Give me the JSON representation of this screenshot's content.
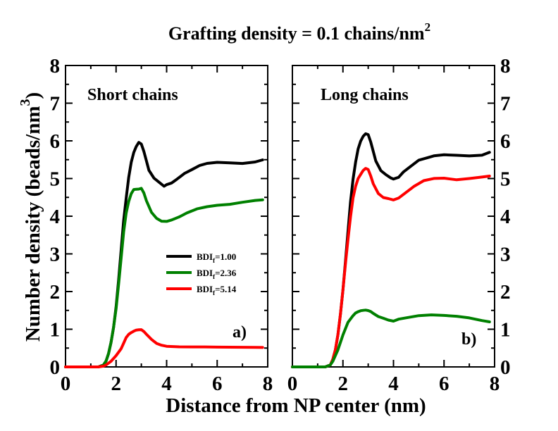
{
  "chart_data": {
    "type": "line",
    "title": "Grafting density = 0.1 chains/nm",
    "title_superscript": "2",
    "xlabel": "Distance from NP center (nm)",
    "ylabel": "Number density (beads/nm",
    "ylabel_superscript": "3",
    "ylabel_close": ")",
    "xlim": [
      0,
      8
    ],
    "ylim": [
      0,
      8
    ],
    "xticks": [
      "0",
      "2",
      "4",
      "6",
      "8"
    ],
    "yticks": [
      "0",
      "1",
      "2",
      "3",
      "4",
      "5",
      "6",
      "7",
      "8"
    ],
    "legend": {
      "position": "middle-right of panel a",
      "entries": [
        {
          "prefix": "BDI",
          "subscript": "f",
          "suffix": "=1.00",
          "color": "#000000"
        },
        {
          "prefix": "BDI",
          "subscript": "f",
          "suffix": "=2.36",
          "color": "#008000"
        },
        {
          "prefix": "BDI",
          "subscript": "f",
          "suffix": "=5.14",
          "color": "#ff0000"
        }
      ]
    },
    "panels": [
      {
        "id": "a",
        "label": "Short chains",
        "tag": "a)",
        "series": [
          {
            "name": "BDIf=1.00",
            "color": "#000000",
            "x": [
              0,
              1.3,
              1.5,
              1.6,
              1.7,
              1.8,
              1.9,
              2.0,
              2.1,
              2.2,
              2.3,
              2.4,
              2.5,
              2.6,
              2.7,
              2.8,
              2.9,
              3.0,
              3.1,
              3.2,
              3.3,
              3.5,
              3.7,
              3.9,
              4.0,
              4.2,
              4.4,
              4.7,
              5.0,
              5.3,
              5.6,
              6.0,
              6.5,
              7.0,
              7.5,
              7.8
            ],
            "y": [
              0,
              0,
              0.05,
              0.15,
              0.35,
              0.65,
              1.05,
              1.6,
              2.3,
              3.1,
              3.9,
              4.5,
              5.05,
              5.45,
              5.7,
              5.85,
              5.95,
              5.9,
              5.7,
              5.45,
              5.2,
              5.0,
              4.9,
              4.8,
              4.85,
              4.9,
              5.0,
              5.15,
              5.25,
              5.35,
              5.4,
              5.42,
              5.4,
              5.38,
              5.42,
              5.48
            ]
          },
          {
            "name": "BDIf=2.36",
            "color": "#008000",
            "x": [
              0,
              1.3,
              1.5,
              1.6,
              1.7,
              1.8,
              1.9,
              2.0,
              2.1,
              2.2,
              2.3,
              2.4,
              2.5,
              2.6,
              2.7,
              2.8,
              2.9,
              3.0,
              3.1,
              3.2,
              3.4,
              3.6,
              3.8,
              4.0,
              4.2,
              4.5,
              4.8,
              5.2,
              5.6,
              6.0,
              6.5,
              7.0,
              7.5,
              7.8
            ],
            "y": [
              0,
              0,
              0.05,
              0.15,
              0.35,
              0.65,
              1.05,
              1.55,
              2.2,
              2.9,
              3.6,
              4.1,
              4.4,
              4.6,
              4.7,
              4.7,
              4.7,
              4.72,
              4.6,
              4.4,
              4.1,
              3.95,
              3.88,
              3.88,
              3.92,
              4.0,
              4.1,
              4.2,
              4.25,
              4.28,
              4.3,
              4.35,
              4.4,
              4.42
            ]
          },
          {
            "name": "BDIf=5.14",
            "color": "#ff0000",
            "x": [
              0,
              1.3,
              1.5,
              1.6,
              1.8,
              2.0,
              2.2,
              2.3,
              2.4,
              2.5,
              2.6,
              2.7,
              2.8,
              2.9,
              3.0,
              3.1,
              3.2,
              3.4,
              3.6,
              3.8,
              4.0,
              4.5,
              5.0,
              5.5,
              6.0,
              6.5,
              7.0,
              7.5,
              7.8
            ],
            "y": [
              0,
              0,
              0.02,
              0.05,
              0.15,
              0.3,
              0.5,
              0.65,
              0.8,
              0.88,
              0.92,
              0.95,
              0.97,
              0.97,
              0.97,
              0.92,
              0.85,
              0.72,
              0.62,
              0.58,
              0.56,
              0.55,
              0.55,
              0.55,
              0.54,
              0.53,
              0.52,
              0.51,
              0.5
            ]
          }
        ]
      },
      {
        "id": "b",
        "label": "Long chains",
        "tag": "b)",
        "series": [
          {
            "name": "BDIf=1.00",
            "color": "#000000",
            "x": [
              0,
              1.3,
              1.5,
              1.6,
              1.7,
              1.8,
              1.9,
              2.0,
              2.1,
              2.2,
              2.3,
              2.4,
              2.5,
              2.6,
              2.7,
              2.8,
              2.9,
              3.0,
              3.1,
              3.2,
              3.3,
              3.5,
              3.7,
              3.9,
              4.0,
              4.2,
              4.4,
              4.7,
              5.0,
              5.3,
              5.6,
              6.0,
              6.5,
              7.0,
              7.5,
              7.8
            ],
            "y": [
              0,
              0,
              0.05,
              0.2,
              0.45,
              0.85,
              1.4,
              2.05,
              2.8,
              3.6,
              4.4,
              5.0,
              5.45,
              5.8,
              6.0,
              6.12,
              6.18,
              6.15,
              5.95,
              5.7,
              5.45,
              5.2,
              5.1,
              5.02,
              5.0,
              5.05,
              5.2,
              5.35,
              5.5,
              5.55,
              5.6,
              5.62,
              5.6,
              5.58,
              5.6,
              5.68
            ]
          },
          {
            "name": "BDIf=5.14",
            "color": "#ff0000",
            "x": [
              0,
              1.3,
              1.5,
              1.6,
              1.7,
              1.8,
              1.9,
              2.0,
              2.1,
              2.2,
              2.3,
              2.4,
              2.5,
              2.6,
              2.7,
              2.8,
              2.9,
              3.0,
              3.1,
              3.2,
              3.4,
              3.6,
              3.8,
              4.0,
              4.2,
              4.5,
              4.8,
              5.2,
              5.6,
              6.0,
              6.5,
              7.0,
              7.5,
              7.8
            ],
            "y": [
              0,
              0,
              0.05,
              0.2,
              0.45,
              0.85,
              1.4,
              2.05,
              2.75,
              3.4,
              4.0,
              4.5,
              4.8,
              5.0,
              5.1,
              5.2,
              5.25,
              5.22,
              5.05,
              4.85,
              4.6,
              4.5,
              4.48,
              4.45,
              4.5,
              4.65,
              4.8,
              4.95,
              5.0,
              5.0,
              4.95,
              4.98,
              5.02,
              5.05
            ]
          },
          {
            "name": "BDIf=2.36",
            "color": "#008000",
            "x": [
              0,
              1.3,
              1.5,
              1.6,
              1.8,
              2.0,
              2.2,
              2.4,
              2.5,
              2.6,
              2.7,
              2.8,
              2.9,
              3.0,
              3.1,
              3.2,
              3.4,
              3.6,
              3.8,
              4.0,
              4.2,
              4.5,
              5.0,
              5.5,
              6.0,
              6.5,
              7.0,
              7.5,
              7.8
            ],
            "y": [
              0,
              0,
              0.05,
              0.15,
              0.45,
              0.85,
              1.2,
              1.38,
              1.45,
              1.48,
              1.5,
              1.5,
              1.5,
              1.48,
              1.45,
              1.4,
              1.32,
              1.28,
              1.24,
              1.22,
              1.28,
              1.32,
              1.38,
              1.4,
              1.38,
              1.35,
              1.3,
              1.22,
              1.18
            ]
          }
        ]
      }
    ]
  }
}
